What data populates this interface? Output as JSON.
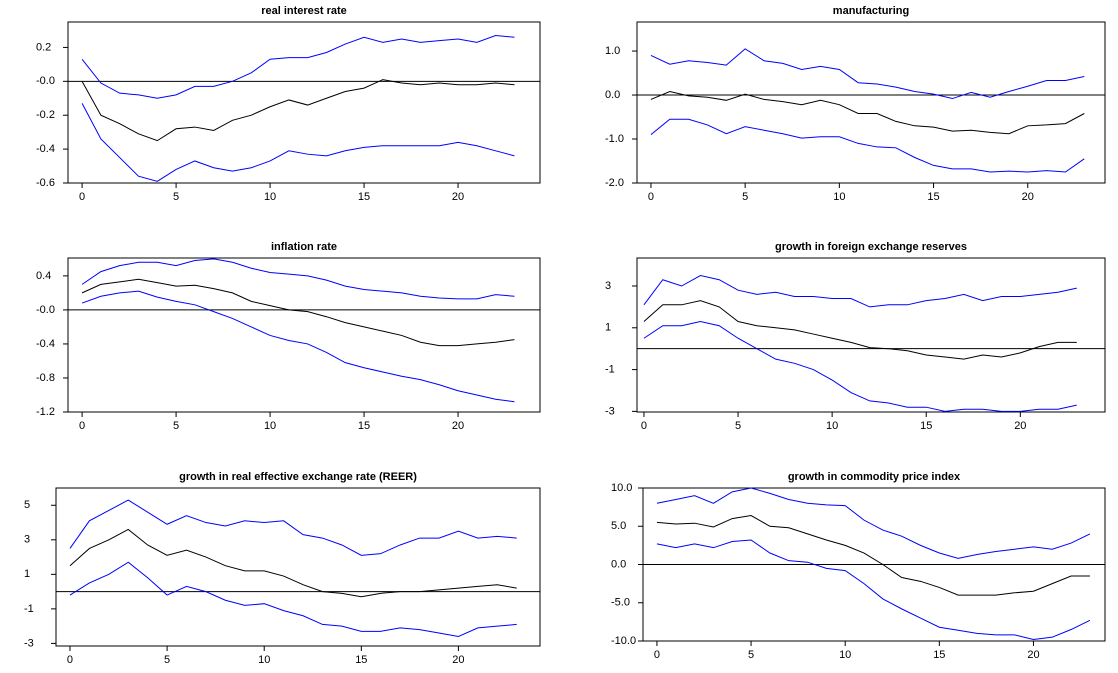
{
  "chart_data": [
    {
      "type": "line",
      "title": "real interest rate",
      "x": [
        0,
        1,
        2,
        3,
        4,
        5,
        6,
        7,
        8,
        9,
        10,
        11,
        12,
        13,
        14,
        15,
        16,
        17,
        18,
        19,
        20,
        21,
        22,
        23
      ],
      "xlim": [
        -0.75,
        24.36
      ],
      "xticks": [
        0,
        5,
        10,
        15,
        20
      ],
      "ylim": [
        -0.6,
        0.35
      ],
      "yticks": [
        -0.6,
        -0.4,
        -0.2,
        {
          "value": 0,
          "label": "-0.0"
        },
        0.2
      ],
      "series": [
        {
          "color": "#0000ff",
          "values": [
            0.13,
            -0.01,
            -0.07,
            -0.08,
            -0.1,
            -0.08,
            -0.03,
            -0.03,
            0.0,
            0.05,
            0.13,
            0.14,
            0.14,
            0.17,
            0.22,
            0.26,
            0.23,
            0.25,
            0.23,
            0.24,
            0.25,
            0.23,
            0.27,
            0.26
          ]
        },
        {
          "color": "#000000",
          "values": [
            0.0,
            -0.2,
            -0.25,
            -0.31,
            -0.35,
            -0.28,
            -0.27,
            -0.29,
            -0.23,
            -0.2,
            -0.15,
            -0.11,
            -0.14,
            -0.1,
            -0.06,
            -0.04,
            0.01,
            -0.01,
            -0.02,
            -0.01,
            -0.02,
            -0.02,
            -0.01,
            -0.02
          ]
        },
        {
          "color": "#0000ff",
          "values": [
            -0.13,
            -0.34,
            -0.45,
            -0.56,
            -0.59,
            -0.52,
            -0.47,
            -0.51,
            -0.53,
            -0.51,
            -0.47,
            -0.41,
            -0.43,
            -0.44,
            -0.41,
            -0.39,
            -0.38,
            -0.38,
            -0.38,
            -0.38,
            -0.36,
            -0.38,
            -0.41,
            -0.44
          ]
        }
      ]
    },
    {
      "type": "line",
      "title": "manufacturing",
      "x": [
        0,
        1,
        2,
        3,
        4,
        5,
        6,
        7,
        8,
        9,
        10,
        11,
        12,
        13,
        14,
        15,
        16,
        17,
        18,
        19,
        20,
        21,
        22,
        23
      ],
      "xlim": [
        -0.74,
        24.1
      ],
      "xticks": [
        0,
        5,
        10,
        15,
        20
      ],
      "ylim": [
        -2.0,
        1.66
      ],
      "yticks": [
        {
          "value": -2,
          "label": "-2.0"
        },
        {
          "value": -1,
          "label": "-1.0"
        },
        {
          "value": 0,
          "label": "0.0"
        },
        {
          "value": 1,
          "label": "1.0"
        }
      ],
      "series": [
        {
          "color": "#0000ff",
          "values": [
            0.9,
            0.7,
            0.78,
            0.74,
            0.68,
            1.05,
            0.78,
            0.72,
            0.58,
            0.65,
            0.58,
            0.28,
            0.25,
            0.18,
            0.08,
            0.02,
            -0.08,
            0.06,
            -0.05,
            0.08,
            0.2,
            0.33,
            0.33,
            0.42
          ]
        },
        {
          "color": "#000000",
          "values": [
            -0.1,
            0.08,
            -0.02,
            -0.05,
            -0.12,
            0.02,
            -0.1,
            -0.15,
            -0.22,
            -0.12,
            -0.22,
            -0.42,
            -0.42,
            -0.6,
            -0.7,
            -0.73,
            -0.82,
            -0.8,
            -0.85,
            -0.88,
            -0.7,
            -0.68,
            -0.65,
            -0.42
          ]
        },
        {
          "color": "#0000ff",
          "values": [
            -0.9,
            -0.55,
            -0.55,
            -0.68,
            -0.88,
            -0.72,
            -0.8,
            -0.88,
            -0.98,
            -0.95,
            -0.95,
            -1.1,
            -1.18,
            -1.2,
            -1.42,
            -1.6,
            -1.68,
            -1.68,
            -1.75,
            -1.73,
            -1.75,
            -1.72,
            -1.75,
            -1.45
          ]
        }
      ]
    },
    {
      "type": "line",
      "title": "inflation rate",
      "x": [
        0,
        1,
        2,
        3,
        4,
        5,
        6,
        7,
        8,
        9,
        10,
        11,
        12,
        13,
        14,
        15,
        16,
        17,
        18,
        19,
        20,
        21,
        22,
        23
      ],
      "xlim": [
        -0.75,
        24.36
      ],
      "xticks": [
        0,
        5,
        10,
        15,
        20
      ],
      "ylim": [
        -1.2,
        0.61
      ],
      "yticks": [
        -1.2,
        -0.8,
        -0.4,
        {
          "value": 0,
          "label": "-0.0"
        },
        0.4
      ],
      "series": [
        {
          "color": "#0000ff",
          "values": [
            0.3,
            0.45,
            0.52,
            0.56,
            0.56,
            0.52,
            0.58,
            0.6,
            0.56,
            0.49,
            0.44,
            0.42,
            0.4,
            0.35,
            0.28,
            0.24,
            0.22,
            0.2,
            0.16,
            0.14,
            0.13,
            0.13,
            0.18,
            0.16
          ]
        },
        {
          "color": "#000000",
          "values": [
            0.2,
            0.3,
            0.33,
            0.36,
            0.32,
            0.28,
            0.29,
            0.25,
            0.2,
            0.1,
            0.05,
            0.0,
            -0.02,
            -0.08,
            -0.15,
            -0.2,
            -0.25,
            -0.3,
            -0.38,
            -0.42,
            -0.42,
            -0.4,
            -0.38,
            -0.35
          ]
        },
        {
          "color": "#0000ff",
          "values": [
            0.08,
            0.16,
            0.2,
            0.22,
            0.15,
            0.1,
            0.06,
            -0.02,
            -0.1,
            -0.2,
            -0.3,
            -0.36,
            -0.4,
            -0.5,
            -0.62,
            -0.68,
            -0.73,
            -0.78,
            -0.82,
            -0.88,
            -0.95,
            -1.0,
            -1.05,
            -1.08
          ]
        }
      ]
    },
    {
      "type": "line",
      "title": "growth in foreign exchange reserves",
      "x": [
        0,
        1,
        2,
        3,
        4,
        5,
        6,
        7,
        8,
        9,
        10,
        11,
        12,
        13,
        14,
        15,
        16,
        17,
        18,
        19,
        20,
        21,
        22,
        23
      ],
      "xlim": [
        -0.37,
        24.5
      ],
      "xticks": [
        0,
        5,
        10,
        15,
        20
      ],
      "ylim": [
        -3.03,
        4.34
      ],
      "yticks": [
        -3,
        -1,
        1,
        3
      ],
      "series": [
        {
          "color": "#0000ff",
          "values": [
            2.1,
            3.3,
            3.0,
            3.5,
            3.3,
            2.8,
            2.6,
            2.7,
            2.5,
            2.5,
            2.4,
            2.4,
            2.0,
            2.1,
            2.1,
            2.3,
            2.4,
            2.6,
            2.3,
            2.5,
            2.5,
            2.6,
            2.7,
            2.9
          ]
        },
        {
          "color": "#000000",
          "values": [
            1.3,
            2.1,
            2.1,
            2.3,
            2.0,
            1.3,
            1.1,
            1.0,
            0.9,
            0.7,
            0.5,
            0.3,
            0.05,
            0.0,
            -0.1,
            -0.3,
            -0.4,
            -0.5,
            -0.3,
            -0.4,
            -0.2,
            0.1,
            0.3,
            0.3
          ]
        },
        {
          "color": "#0000ff",
          "values": [
            0.5,
            1.1,
            1.1,
            1.3,
            1.1,
            0.5,
            0.0,
            -0.5,
            -0.7,
            -1.0,
            -1.5,
            -2.1,
            -2.5,
            -2.6,
            -2.8,
            -2.8,
            -3.0,
            -2.9,
            -2.9,
            -3.0,
            -3.0,
            -2.9,
            -2.9,
            -2.7
          ]
        }
      ]
    },
    {
      "type": "line",
      "title": "growth in real effective exchange rate (REER)",
      "x": [
        0,
        1,
        2,
        3,
        4,
        5,
        6,
        7,
        8,
        9,
        10,
        11,
        12,
        13,
        14,
        15,
        16,
        17,
        18,
        19,
        20,
        21,
        22,
        23
      ],
      "xlim": [
        -0.72,
        24.2
      ],
      "xticks": [
        0,
        5,
        10,
        15,
        20
      ],
      "ylim": [
        -3.15,
        6.0
      ],
      "yticks": [
        -3,
        -1,
        1,
        3,
        5
      ],
      "series": [
        {
          "color": "#0000ff",
          "values": [
            2.5,
            4.1,
            4.7,
            5.3,
            4.6,
            3.9,
            4.4,
            4.0,
            3.8,
            4.1,
            4.0,
            4.1,
            3.3,
            3.1,
            2.7,
            2.1,
            2.2,
            2.7,
            3.1,
            3.1,
            3.5,
            3.1,
            3.2,
            3.1
          ]
        },
        {
          "color": "#000000",
          "values": [
            1.5,
            2.5,
            3.0,
            3.6,
            2.7,
            2.1,
            2.4,
            2.0,
            1.5,
            1.2,
            1.2,
            0.9,
            0.4,
            0.0,
            -0.1,
            -0.3,
            -0.1,
            0.0,
            0.0,
            0.1,
            0.2,
            0.3,
            0.4,
            0.2
          ]
        },
        {
          "color": "#0000ff",
          "values": [
            -0.2,
            0.5,
            1.0,
            1.7,
            0.8,
            -0.2,
            0.3,
            0.0,
            -0.5,
            -0.8,
            -0.7,
            -1.1,
            -1.4,
            -1.9,
            -2.0,
            -2.3,
            -2.3,
            -2.1,
            -2.2,
            -2.4,
            -2.6,
            -2.1,
            -2.0,
            -1.9
          ]
        }
      ]
    },
    {
      "type": "line",
      "title": "growth in commodity price index",
      "x": [
        0,
        1,
        2,
        3,
        4,
        5,
        6,
        7,
        8,
        9,
        10,
        11,
        12,
        13,
        14,
        15,
        16,
        17,
        18,
        19,
        20,
        21,
        22,
        23
      ],
      "xlim": [
        -0.74,
        23.8
      ],
      "xticks": [
        0,
        5,
        10,
        15,
        20
      ],
      "ylim": [
        -10,
        10
      ],
      "yticks": [
        {
          "value": -10,
          "label": "-10.0"
        },
        {
          "value": -5,
          "label": "-5.0"
        },
        {
          "value": 0,
          "label": "0.0"
        },
        {
          "value": 5,
          "label": "5.0"
        },
        {
          "value": 10,
          "label": "10.0"
        }
      ],
      "series": [
        {
          "color": "#0000ff",
          "values": [
            8.0,
            8.5,
            9.0,
            8.0,
            9.5,
            10.0,
            9.3,
            8.5,
            8.0,
            7.8,
            7.7,
            5.8,
            4.5,
            3.7,
            2.5,
            1.5,
            0.8,
            1.3,
            1.7,
            2.0,
            2.3,
            2.0,
            2.8,
            4.0
          ]
        },
        {
          "color": "#000000",
          "values": [
            5.5,
            5.3,
            5.4,
            4.9,
            6.0,
            6.4,
            5.0,
            4.8,
            4.0,
            3.2,
            2.5,
            1.5,
            0.0,
            -1.7,
            -2.2,
            -3.0,
            -4.0,
            -4.0,
            -4.0,
            -3.7,
            -3.5,
            -2.5,
            -1.5,
            -1.5
          ]
        },
        {
          "color": "#0000ff",
          "values": [
            2.7,
            2.2,
            2.7,
            2.2,
            3.0,
            3.2,
            1.5,
            0.5,
            0.3,
            -0.5,
            -0.8,
            -2.5,
            -4.5,
            -5.8,
            -7.0,
            -8.2,
            -8.6,
            -9.0,
            -9.2,
            -9.2,
            -9.8,
            -9.5,
            -8.5,
            -7.3
          ]
        }
      ]
    }
  ]
}
